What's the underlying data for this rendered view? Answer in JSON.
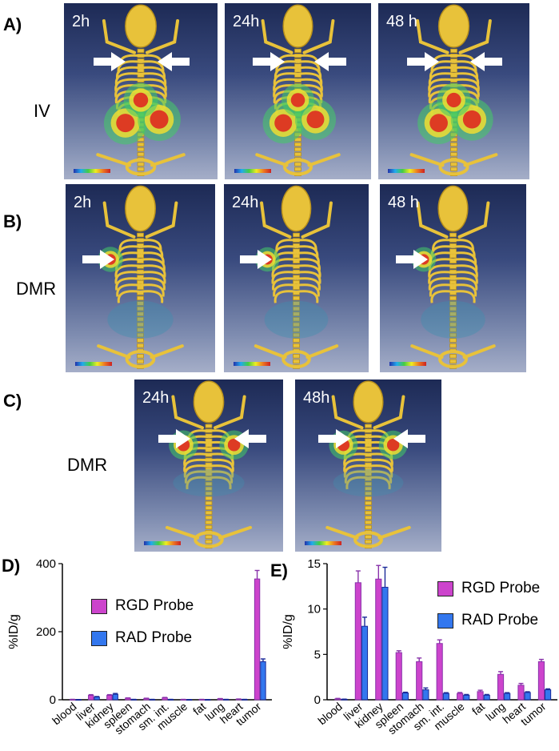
{
  "panels": {
    "A": {
      "letter": "A)",
      "label": "IV",
      "times": [
        "2h",
        "24h",
        "48 h"
      ]
    },
    "B": {
      "letter": "B)",
      "label": "DMR",
      "times": [
        "2h",
        "24h",
        "48 h"
      ]
    },
    "C": {
      "letter": "C)",
      "label": "DMR",
      "times": [
        "24h",
        "48h"
      ]
    },
    "D": {
      "letter": "D)"
    },
    "E": {
      "letter": "E)"
    }
  },
  "colors": {
    "rgd": "#cc44cc",
    "rad": "#3377ee",
    "error_rgd": "#8833aa",
    "error_rad": "#1a2a99"
  },
  "chart_data": [
    {
      "type": "bar",
      "panel": "D",
      "ylabel": "%ID/g",
      "ylim": [
        0,
        400
      ],
      "yticks": [
        "0",
        "200",
        "400"
      ],
      "categories": [
        "blood",
        "liver",
        "kidney",
        "spleen",
        "stomach",
        "sm. int.",
        "muscle",
        "fat",
        "lung",
        "heart",
        "tumor"
      ],
      "legend_position": "upper-left",
      "series": [
        {
          "name": "RGD Probe",
          "values": [
            1,
            13,
            13,
            5,
            4,
            6,
            1,
            1,
            3,
            2,
            355
          ],
          "errors": [
            0.3,
            2,
            2,
            0.5,
            0.5,
            0.8,
            0.2,
            0.2,
            0.5,
            0.3,
            25
          ]
        },
        {
          "name": "RAD Probe",
          "values": [
            0.5,
            8,
            16,
            1,
            1,
            1,
            0.5,
            0.5,
            1,
            1,
            112
          ],
          "errors": [
            0.2,
            1.5,
            2.5,
            0.2,
            0.2,
            0.2,
            0.1,
            0.1,
            0.2,
            0.2,
            8
          ]
        }
      ]
    },
    {
      "type": "bar",
      "panel": "E",
      "ylabel": "%ID/g",
      "ylim": [
        0,
        15
      ],
      "yticks": [
        "0",
        "5",
        "10",
        "15"
      ],
      "categories": [
        "blood",
        "liver",
        "kidney",
        "spleen",
        "stomach",
        "sm. int.",
        "muscle",
        "fat",
        "lung",
        "heart",
        "tumor"
      ],
      "legend_position": "upper-right",
      "series": [
        {
          "name": "RGD Probe",
          "values": [
            0.1,
            12.9,
            13.3,
            5.2,
            4.2,
            6.2,
            0.7,
            0.9,
            2.8,
            1.6,
            4.2
          ],
          "errors": [
            0.05,
            1.3,
            1.5,
            0.2,
            0.4,
            0.4,
            0.1,
            0.15,
            0.3,
            0.2,
            0.25
          ]
        },
        {
          "name": "RAD Probe",
          "values": [
            0.05,
            8.1,
            12.4,
            0.75,
            1.1,
            0.7,
            0.5,
            0.5,
            0.7,
            0.8,
            1.1
          ],
          "errors": [
            0.02,
            1.0,
            2.2,
            0.08,
            0.2,
            0.08,
            0.08,
            0.08,
            0.08,
            0.08,
            0.1
          ]
        }
      ]
    }
  ]
}
